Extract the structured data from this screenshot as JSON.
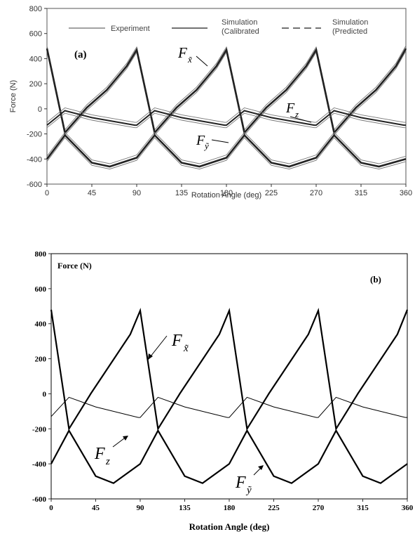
{
  "chart_data": [
    {
      "type": "line",
      "panel_label": "(a)",
      "xlabel": "Rotation Angle (deg)",
      "ylabel": "Force (N)",
      "xlim": [
        0,
        360
      ],
      "ylim": [
        -600,
        800
      ],
      "xticks": [
        0,
        45,
        90,
        135,
        180,
        225,
        270,
        315,
        360
      ],
      "yticks": [
        -600,
        -400,
        -200,
        0,
        200,
        400,
        600,
        800
      ],
      "grid": false,
      "legend_position": "top",
      "legend": [
        {
          "label": "Experiment",
          "style": "thin solid"
        },
        {
          "label": "Simulation\n(Calibrated",
          "style": "solid"
        },
        {
          "label": "Simulation\n(Predicted",
          "style": "dashed"
        }
      ],
      "curve_labels": [
        {
          "main": "F",
          "sub": "x̃",
          "attach_x": 178
        },
        {
          "main": "F",
          "sub": "z",
          "attach_x": 260
        },
        {
          "main": "F",
          "sub": "ỹ",
          "attach_x": 198
        }
      ],
      "series": [
        {
          "name": "F_x̃",
          "x": [
            0,
            18,
            40,
            60,
            80,
            90,
            108,
            130,
            150,
            170,
            180,
            198,
            220,
            240,
            260,
            270,
            288,
            310,
            330,
            350,
            360
          ],
          "y": [
            480,
            -190,
            10,
            150,
            340,
            470,
            -190,
            10,
            150,
            340,
            470,
            -190,
            10,
            150,
            340,
            470,
            -190,
            10,
            150,
            340,
            480
          ]
        },
        {
          "name": "F_z",
          "x": [
            0,
            18,
            45,
            88,
            90,
            108,
            135,
            178,
            180,
            198,
            225,
            268,
            270,
            288,
            315,
            358,
            360
          ],
          "y": [
            -130,
            -15,
            -70,
            -130,
            -130,
            -15,
            -70,
            -130,
            -130,
            -15,
            -70,
            -130,
            -130,
            -15,
            -70,
            -130,
            -130
          ]
        },
        {
          "name": "F_ỹ",
          "x": [
            0,
            18,
            45,
            63,
            90,
            108,
            135,
            153,
            180,
            198,
            225,
            243,
            270,
            288,
            315,
            333,
            360
          ],
          "y": [
            -400,
            -210,
            -430,
            -460,
            -390,
            -210,
            -430,
            -460,
            -390,
            -210,
            -430,
            -460,
            -390,
            -210,
            -430,
            -460,
            -400
          ]
        }
      ]
    },
    {
      "type": "line",
      "panel_label": "(b)",
      "xlabel": "Rotation Angle (deg)",
      "ylabel": "Force (N)",
      "xlim": [
        0,
        360
      ],
      "ylim": [
        -600,
        800
      ],
      "xticks": [
        0,
        45,
        90,
        135,
        180,
        225,
        270,
        315,
        360
      ],
      "yticks": [
        -600,
        -400,
        -200,
        0,
        200,
        400,
        600,
        800
      ],
      "grid": false,
      "curve_labels": [
        {
          "main": "F",
          "sub": "x̃",
          "attach_x": 92
        },
        {
          "main": "F",
          "sub": "z",
          "attach_x": 18
        },
        {
          "main": "F",
          "sub": "ỹ",
          "attach_x": 208
        }
      ],
      "series": [
        {
          "name": "F_x̃",
          "x": [
            0,
            18,
            40,
            60,
            80,
            90,
            108,
            130,
            150,
            170,
            180,
            198,
            220,
            240,
            260,
            270,
            288,
            310,
            330,
            350,
            360
          ],
          "y": [
            480,
            -200,
            0,
            170,
            340,
            475,
            -200,
            0,
            170,
            340,
            475,
            -200,
            0,
            170,
            340,
            475,
            -200,
            0,
            170,
            340,
            480
          ]
        },
        {
          "name": "F_z",
          "x": [
            0,
            18,
            45,
            88,
            90,
            108,
            135,
            178,
            180,
            198,
            225,
            268,
            270,
            288,
            315,
            358,
            360
          ],
          "y": [
            -130,
            -20,
            -75,
            -135,
            -135,
            -20,
            -75,
            -135,
            -135,
            -20,
            -75,
            -135,
            -135,
            -20,
            -75,
            -135,
            -135
          ]
        },
        {
          "name": "F_ỹ",
          "x": [
            0,
            18,
            45,
            63,
            90,
            108,
            135,
            153,
            180,
            198,
            225,
            243,
            270,
            288,
            315,
            333,
            360
          ],
          "y": [
            -400,
            -210,
            -470,
            -510,
            -400,
            -210,
            -470,
            -510,
            -400,
            -210,
            -470,
            -510,
            -400,
            -210,
            -470,
            -510,
            -400
          ]
        }
      ]
    }
  ]
}
